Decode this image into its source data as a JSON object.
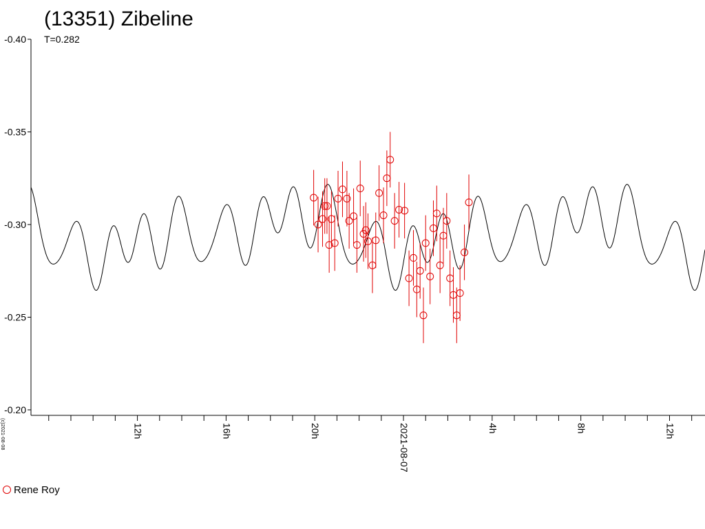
{
  "chart_data": {
    "type": "scatter",
    "title": "(13351) Zibeline",
    "subtitle": "T=0.282",
    "credit": "(c)2021-08-08",
    "legend": [
      {
        "name": "Rene Roy",
        "color": "#e00000",
        "marker": "circle"
      }
    ],
    "y_axis": {
      "range": [
        -0.4,
        -0.2
      ],
      "inverted": true,
      "ticks": [
        -0.4,
        -0.35,
        -0.3,
        -0.25,
        -0.2
      ],
      "tick_labels": [
        "-0.40",
        "-0.35",
        "-0.30",
        "-0.25",
        "-0.20"
      ]
    },
    "x_axis": {
      "unit": "hours relative to 2021-08-07 00:00",
      "range": [
        -16.8,
        13.6
      ],
      "major_ticks": [
        -12,
        -8,
        -4,
        0,
        4,
        8,
        12
      ],
      "major_labels": [
        "12h",
        "16h",
        "20h",
        "2021-08-07",
        "4h",
        "8h",
        "12h"
      ],
      "minor_step": 1
    },
    "model_curve": {
      "color": "#000000",
      "mean": -0.295,
      "start_hour": -16.8,
      "end_hour": 13.6,
      "components": [
        {
          "period_h": 13.5,
          "amp": 0.008,
          "phase": -0.4
        },
        {
          "period_h": 6.75,
          "amp": 0.006,
          "phase": 0.9
        },
        {
          "period_h": 2.25,
          "amp": 0.009,
          "phase": 0.2
        },
        {
          "period_h": 1.6875,
          "amp": 0.0115,
          "phase": 2.3
        },
        {
          "period_h": 1.35,
          "amp": 0.007,
          "phase": 1.1
        }
      ]
    },
    "series": [
      {
        "name": "Rene Roy",
        "color": "#e00000",
        "points": [
          {
            "x": -4.05,
            "y": -0.3145,
            "err": 0.015
          },
          {
            "x": -3.85,
            "y": -0.3,
            "err": 0.015
          },
          {
            "x": -3.65,
            "y": -0.303,
            "err": 0.015
          },
          {
            "x": -3.55,
            "y": -0.31,
            "err": 0.015
          },
          {
            "x": -3.45,
            "y": -0.31,
            "err": 0.015
          },
          {
            "x": -3.35,
            "y": -0.289,
            "err": 0.015
          },
          {
            "x": -3.25,
            "y": -0.303,
            "err": 0.015
          },
          {
            "x": -3.1,
            "y": -0.29,
            "err": 0.015
          },
          {
            "x": -2.95,
            "y": -0.314,
            "err": 0.015
          },
          {
            "x": -2.75,
            "y": -0.319,
            "err": 0.015
          },
          {
            "x": -2.55,
            "y": -0.314,
            "err": 0.015
          },
          {
            "x": -2.45,
            "y": -0.302,
            "err": 0.015
          },
          {
            "x": -2.25,
            "y": -0.3045,
            "err": 0.015
          },
          {
            "x": -2.1,
            "y": -0.289,
            "err": 0.015
          },
          {
            "x": -1.95,
            "y": -0.3195,
            "err": 0.015
          },
          {
            "x": -1.8,
            "y": -0.295,
            "err": 0.015
          },
          {
            "x": -1.7,
            "y": -0.297,
            "err": 0.015
          },
          {
            "x": -1.6,
            "y": -0.291,
            "err": 0.015
          },
          {
            "x": -1.4,
            "y": -0.278,
            "err": 0.015
          },
          {
            "x": -1.25,
            "y": -0.2915,
            "err": 0.015
          },
          {
            "x": -1.1,
            "y": -0.317,
            "err": 0.015
          },
          {
            "x": -0.9,
            "y": -0.305,
            "err": 0.015
          },
          {
            "x": -0.75,
            "y": -0.325,
            "err": 0.015
          },
          {
            "x": -0.6,
            "y": -0.335,
            "err": 0.015
          },
          {
            "x": -0.4,
            "y": -0.302,
            "err": 0.015
          },
          {
            "x": -0.2,
            "y": -0.308,
            "err": 0.015
          },
          {
            "x": 0.05,
            "y": -0.3075,
            "err": 0.015
          },
          {
            "x": 0.25,
            "y": -0.271,
            "err": 0.015
          },
          {
            "x": 0.45,
            "y": -0.282,
            "err": 0.015
          },
          {
            "x": 0.6,
            "y": -0.265,
            "err": 0.015
          },
          {
            "x": 0.75,
            "y": -0.275,
            "err": 0.015
          },
          {
            "x": 0.9,
            "y": -0.251,
            "err": 0.015
          },
          {
            "x": 1.0,
            "y": -0.29,
            "err": 0.015
          },
          {
            "x": 1.2,
            "y": -0.272,
            "err": 0.015
          },
          {
            "x": 1.35,
            "y": -0.298,
            "err": 0.015
          },
          {
            "x": 1.5,
            "y": -0.306,
            "err": 0.015
          },
          {
            "x": 1.65,
            "y": -0.278,
            "err": 0.015
          },
          {
            "x": 1.8,
            "y": -0.294,
            "err": 0.015
          },
          {
            "x": 1.95,
            "y": -0.302,
            "err": 0.015
          },
          {
            "x": 2.1,
            "y": -0.271,
            "err": 0.015
          },
          {
            "x": 2.25,
            "y": -0.262,
            "err": 0.015
          },
          {
            "x": 2.4,
            "y": -0.251,
            "err": 0.015
          },
          {
            "x": 2.55,
            "y": -0.263,
            "err": 0.015
          },
          {
            "x": 2.75,
            "y": -0.285,
            "err": 0.015
          },
          {
            "x": 2.95,
            "y": -0.312,
            "err": 0.015
          }
        ]
      }
    ]
  }
}
